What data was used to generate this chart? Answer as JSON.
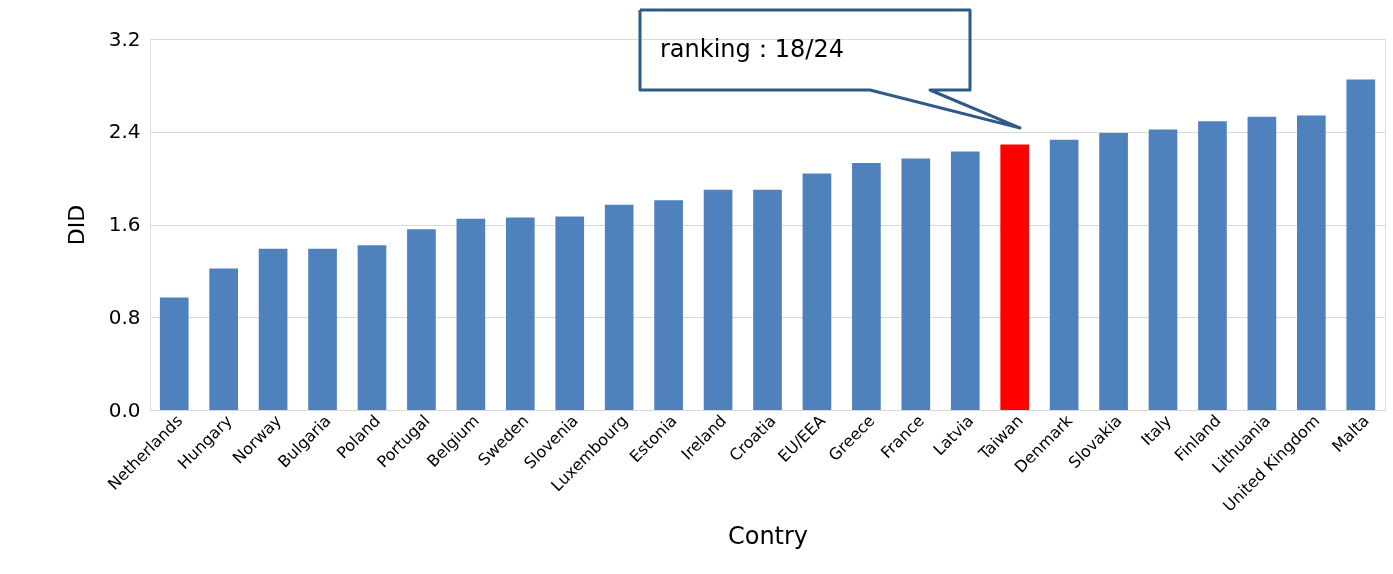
{
  "chart_data": {
    "type": "bar",
    "xlabel": "Contry",
    "ylabel": "DID",
    "categories": [
      "Netherlands",
      "Hungary",
      "Norway",
      "Bulgaria",
      "Poland",
      "Portugal",
      "Belgium",
      "Sweden",
      "Slovenia",
      "Luxembourg",
      "Estonia",
      "Ireland",
      "Croatia",
      "EU/EEA",
      "Greece",
      "France",
      "Latvia",
      "Taiwan",
      "Denmark",
      "Slovakia",
      "Italy",
      "Finland",
      "Lithuania",
      "United Kingdom",
      "Malta"
    ],
    "values": [
      0.97,
      1.22,
      1.39,
      1.39,
      1.42,
      1.56,
      1.65,
      1.66,
      1.67,
      1.77,
      1.81,
      1.9,
      1.9,
      2.04,
      2.13,
      2.17,
      2.23,
      2.29,
      2.33,
      2.39,
      2.42,
      2.49,
      2.53,
      2.54,
      2.85
    ],
    "colors": [
      "#4f81bd",
      "#4f81bd",
      "#4f81bd",
      "#4f81bd",
      "#4f81bd",
      "#4f81bd",
      "#4f81bd",
      "#4f81bd",
      "#4f81bd",
      "#4f81bd",
      "#4f81bd",
      "#4f81bd",
      "#4f81bd",
      "#4f81bd",
      "#4f81bd",
      "#4f81bd",
      "#4f81bd",
      "#ff0000",
      "#4f81bd",
      "#4f81bd",
      "#4f81bd",
      "#4f81bd",
      "#4f81bd",
      "#4f81bd",
      "#4f81bd"
    ],
    "ylim": [
      0,
      3.2
    ],
    "yticks": [
      {
        "value": 0,
        "label": "0.0"
      },
      {
        "value": 0.8,
        "label": "0.8"
      },
      {
        "value": 1.6,
        "label": "1.6"
      },
      {
        "value": 2.4,
        "label": "2.4"
      },
      {
        "value": 3.2,
        "label": "3.2"
      }
    ],
    "grid": "y",
    "annotations": [
      "ranking：18/24"
    ]
  }
}
